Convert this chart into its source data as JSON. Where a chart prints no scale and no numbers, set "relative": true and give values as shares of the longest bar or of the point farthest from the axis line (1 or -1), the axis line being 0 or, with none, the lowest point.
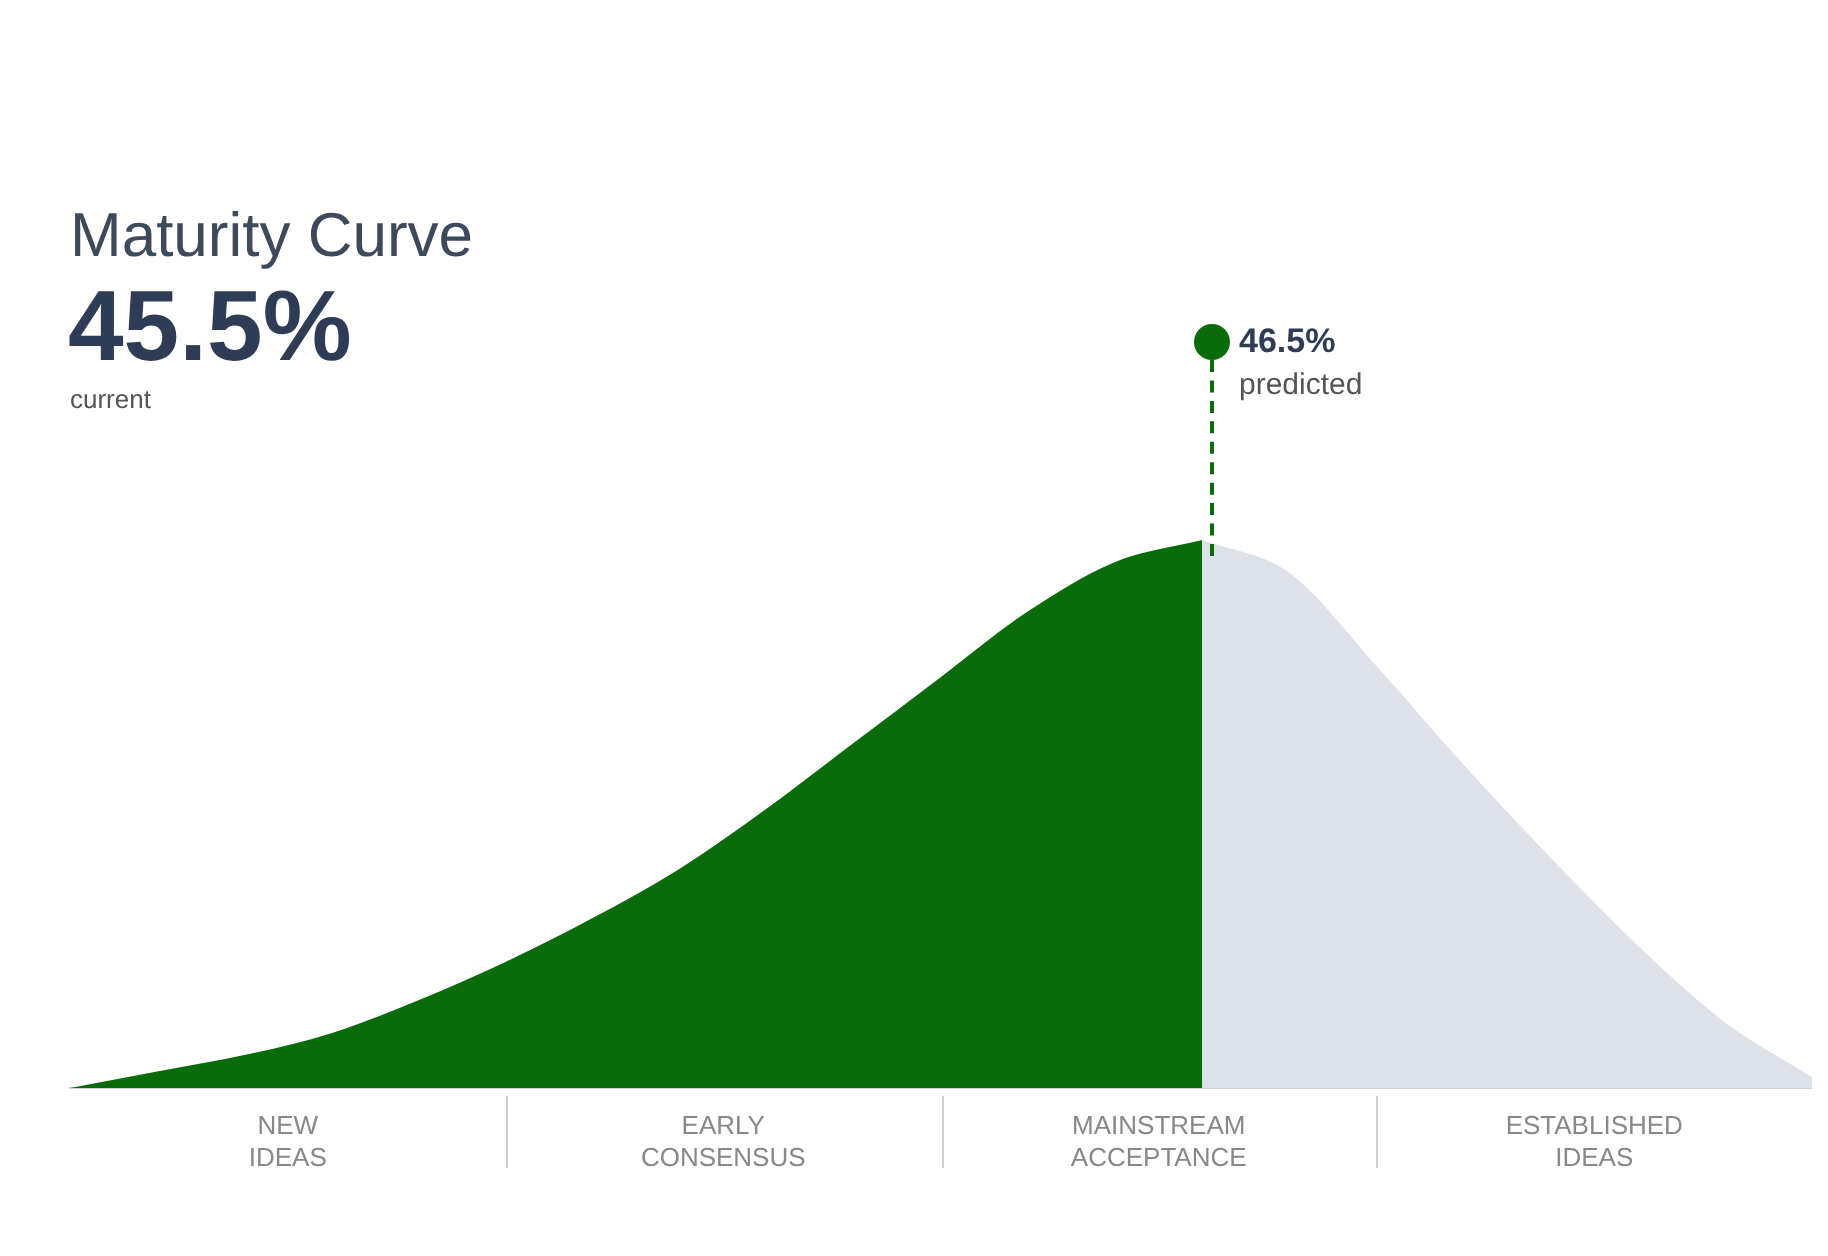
{
  "chart_data": {
    "type": "area",
    "title": "Maturity Curve",
    "relative": true,
    "legend": false,
    "categories": [
      null,
      null,
      null,
      null,
      null,
      null,
      null,
      null,
      null,
      null,
      null,
      null,
      null,
      null,
      null,
      null,
      null,
      null,
      null,
      null,
      null
    ],
    "series": [
      {
        "color": "#0a6b0a",
        "values": [
          0,
          0.03,
          0.06,
          0.1,
          0.16,
          0.23,
          0.31,
          0.4,
          0.51,
          0.63,
          0.75,
          0.87,
          0.96,
          1,
          null,
          null,
          null,
          null,
          null,
          null,
          null
        ]
      },
      {
        "color": "#dde1ea",
        "values": [
          null,
          null,
          null,
          null,
          null,
          null,
          null,
          null,
          null,
          null,
          null,
          null,
          null,
          1,
          0.94,
          0.77,
          0.59,
          0.42,
          0.26,
          0.12,
          0.02
        ]
      }
    ],
    "annotations": [
      "45.5%",
      "current",
      "46.5%",
      "predicted",
      "NEW IDEAS",
      "EARLY CONSENSUS",
      "MAINSTREAM ACCEPTANCE",
      "ESTABLISHED IDEAS"
    ]
  }
}
